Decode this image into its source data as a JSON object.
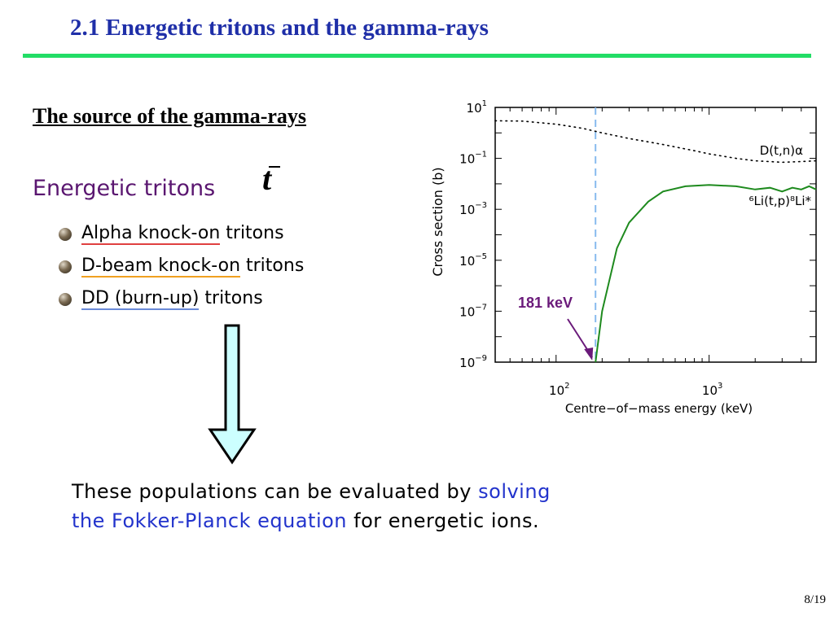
{
  "slide": {
    "title": "2.1 Energetic tritons and the gamma-rays",
    "subheading": "The source of the gamma-rays",
    "energetic_label": "Energetic tritons",
    "triton_symbol": "t",
    "bullets": [
      {
        "underlined": "Alpha knock-on",
        "rest": " tritons"
      },
      {
        "underlined": "D-beam knock-on",
        "rest": " tritons"
      },
      {
        "underlined": "DD (burn-up)",
        "rest": " tritons"
      }
    ],
    "conclusion": {
      "part1": "These populations can be evaluated by ",
      "part2_highlight": "solving",
      "part3_highlight": "the Fokker-Planck equation",
      "part4": " for energetic ions."
    },
    "page_number": "8/19",
    "colors": {
      "title": "#1f2fa8",
      "rule": "#22dd66",
      "highlight": "#2233cc",
      "energetic": "#5a1670"
    }
  },
  "chart_data": {
    "type": "line",
    "xlabel": "Centre−of−mass energy (keV)",
    "ylabel": "Cross section (b)",
    "x_scale": "log",
    "y_scale": "log",
    "xlim": [
      40,
      5000
    ],
    "ylim": [
      1e-09,
      10
    ],
    "x_ticks": [
      {
        "base": "10",
        "exp": "2"
      },
      {
        "base": "10",
        "exp": "3"
      }
    ],
    "y_ticks": [
      {
        "base": "10",
        "exp": "1"
      },
      {
        "base": "10",
        "exp": "−1"
      },
      {
        "base": "10",
        "exp": "−3"
      },
      {
        "base": "10",
        "exp": "−5"
      },
      {
        "base": "10",
        "exp": "−7"
      },
      {
        "base": "10",
        "exp": "−9"
      }
    ],
    "series": [
      {
        "name": "D(t,n)α",
        "style": "dotted",
        "color": "#000000",
        "x": [
          40,
          60,
          100,
          150,
          200,
          300,
          500,
          800,
          1000,
          1500,
          2000,
          3000,
          4000,
          5000
        ],
        "y": [
          3.0,
          2.9,
          2.2,
          1.5,
          1.0,
          0.6,
          0.35,
          0.2,
          0.15,
          0.1,
          0.08,
          0.07,
          0.075,
          0.08
        ]
      },
      {
        "name": "⁶Li(t,p)⁸Li*",
        "style": "solid",
        "color": "#1e8a1e",
        "x": [
          181,
          200,
          250,
          300,
          400,
          500,
          700,
          1000,
          1500,
          2000,
          2500,
          3000,
          3500,
          4000,
          4500,
          5000
        ],
        "y": [
          1e-09,
          1e-07,
          3e-05,
          0.0003,
          0.002,
          0.005,
          0.008,
          0.009,
          0.008,
          0.006,
          0.007,
          0.005,
          0.007,
          0.006,
          0.008,
          0.006
        ]
      }
    ],
    "marker_line": {
      "x": 181,
      "color": "#88bbee",
      "style": "dashed"
    },
    "annotation": {
      "text": "181 keV",
      "x": 181,
      "color": "#6a1a7a"
    }
  }
}
